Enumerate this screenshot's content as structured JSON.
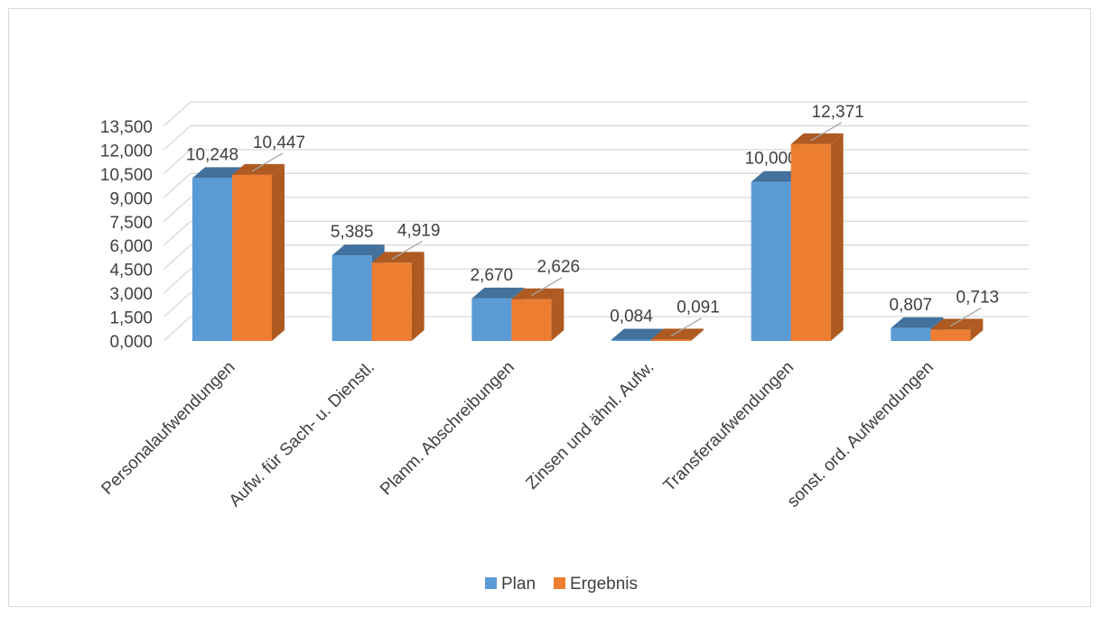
{
  "chart_data": {
    "type": "bar",
    "categories": [
      "Personalaufwendungen",
      "Aufw. für Sach- u. Dienstl.",
      "Planm. Abschreibungen",
      "Zinsen und ähnl. Aufw.",
      "Transferaufwendungen",
      "sonst. ord. Aufwendungen"
    ],
    "series": [
      {
        "name": "Plan",
        "values": [
          10.248,
          5.385,
          2.67,
          0.084,
          10.0,
          0.807
        ],
        "labels": [
          "10,248",
          "5,385",
          "2,670",
          "0,084",
          "10,000",
          "0,807"
        ]
      },
      {
        "name": "Ergebnis",
        "values": [
          10.447,
          4.919,
          2.626,
          0.091,
          12.371,
          0.713
        ],
        "labels": [
          "10,447",
          "4,919",
          "2,626",
          "0,091",
          "12,371",
          "0,713"
        ]
      }
    ],
    "yticks": [
      "0,000",
      "1,500",
      "3,000",
      "4,500",
      "6,000",
      "7,500",
      "9,000",
      "10,500",
      "12,000",
      "13,500"
    ],
    "ylim": [
      0,
      13.5
    ],
    "title": "",
    "xlabel": "",
    "ylabel": "",
    "grid": true,
    "legend_position": "bottom",
    "colors": {
      "plan_front": "#5b9bd5",
      "plan_top": "#41719c",
      "plan_side": "#41719c",
      "erg_front": "#ed7d31",
      "erg_top": "#ae5a21",
      "erg_side": "#ae5a21",
      "grid": "#d9d9d9",
      "leader": "#a6a6a6"
    }
  }
}
